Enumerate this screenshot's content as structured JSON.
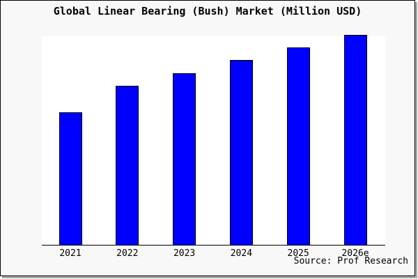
{
  "window": {
    "background_color": "#f8f8f8",
    "plot_background_color": "#ffffff",
    "frame_border_color": "#000000",
    "shadow_color": "#aaaaaa"
  },
  "chart": {
    "title": "Global Linear Bearing (Bush) Market (Million USD)",
    "source_label": "Source: Prof Research"
  },
  "chart_data": {
    "type": "bar",
    "title": "Global Linear Bearing (Bush) Market (Million USD)",
    "categories": [
      "2021",
      "2022",
      "2023",
      "2024",
      "2025",
      "2026e"
    ],
    "values": [
      63,
      75.5,
      81.7,
      88,
      94,
      100
    ],
    "value_basis": "no y-axis labels shown; values estimated from relative bar heights with 2026e = 100",
    "xlabel": "",
    "ylabel": "",
    "ylim": [
      0,
      100
    ],
    "grid": false,
    "legend": false,
    "bar_color": "#0000ff",
    "bar_border_color": "#000000",
    "source": "Source: Prof Research"
  }
}
